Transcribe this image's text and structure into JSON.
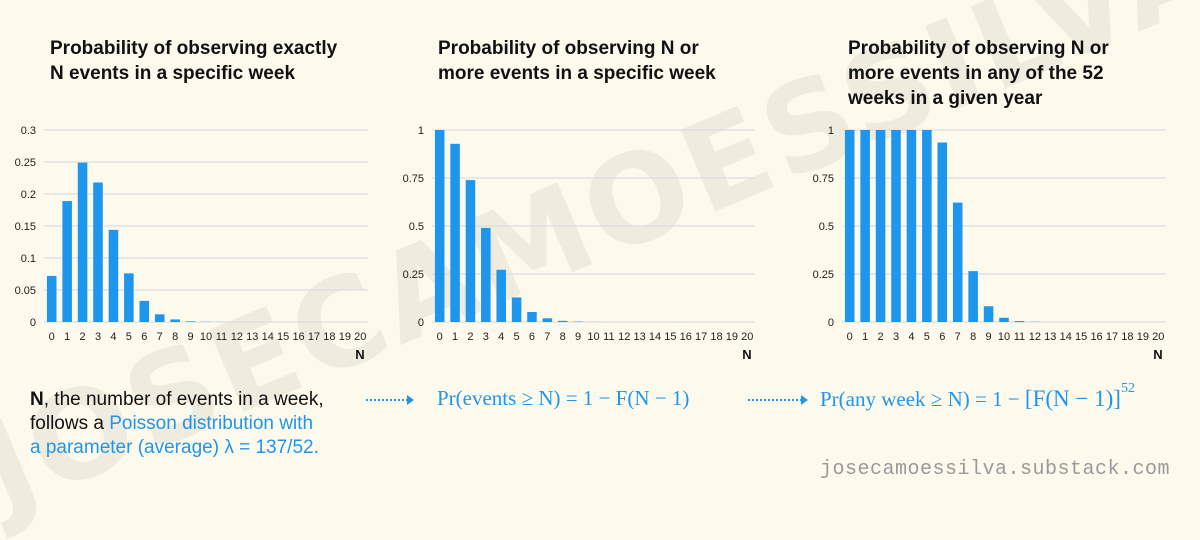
{
  "watermark": "JOSECAMOESSILVA",
  "credit": "josecamoessilva.substack.com",
  "description": {
    "n_bold": "N",
    "line1_rest": ", the number of events in a week,",
    "line2_plain": "follows a ",
    "line2_blue": "Poisson distribution with",
    "line3_blue": "a parameter (average) λ = 137/52."
  },
  "formulas": {
    "f1": "Pr(events ≥ N) = 1 − F(N − 1)",
    "f2_main": "Pr(any week ≥ N) = 1 − ",
    "f2_bracket": "[F(N − 1)]",
    "f2_exp": "52"
  },
  "colors": {
    "bar": "#1f96ee",
    "grid": "#d8d8d8",
    "accent": "#1f96ee"
  },
  "chart_data": [
    {
      "type": "bar",
      "title": "Probability of observing exactly\nN events in a specific week",
      "xlabel": "N",
      "ylabel": "",
      "categories": [
        "0",
        "1",
        "2",
        "3",
        "4",
        "5",
        "6",
        "7",
        "8",
        "9",
        "10",
        "11",
        "12",
        "13",
        "14",
        "15",
        "16",
        "17",
        "18",
        "19",
        "20"
      ],
      "values": [
        0.072,
        0.189,
        0.249,
        0.218,
        0.144,
        0.076,
        0.033,
        0.012,
        0.004,
        0.001,
        0.0003,
        0.0001,
        0,
        0,
        0,
        0,
        0,
        0,
        0,
        0,
        0
      ],
      "ylim": [
        0,
        0.3
      ],
      "yticks": [
        "0",
        "0.05",
        "0.1",
        "0.15",
        "0.2",
        "0.25",
        "0.3"
      ],
      "ytick_values": [
        0,
        0.05,
        0.1,
        0.15,
        0.2,
        0.25,
        0.3
      ]
    },
    {
      "type": "bar",
      "title": "Probability of observing N or\nmore events in a specific week",
      "xlabel": "N",
      "ylabel": "",
      "categories": [
        "0",
        "1",
        "2",
        "3",
        "4",
        "5",
        "6",
        "7",
        "8",
        "9",
        "10",
        "11",
        "12",
        "13",
        "14",
        "15",
        "16",
        "17",
        "18",
        "19",
        "20"
      ],
      "values": [
        1.0,
        0.928,
        0.739,
        0.49,
        0.272,
        0.128,
        0.052,
        0.019,
        0.006,
        0.002,
        0.0005,
        0.0001,
        0,
        0,
        0,
        0,
        0,
        0,
        0,
        0,
        0
      ],
      "ylim": [
        0,
        1
      ],
      "yticks": [
        "0",
        "0.25",
        "0.5",
        "0.75",
        "1"
      ],
      "ytick_values": [
        0,
        0.25,
        0.5,
        0.75,
        1
      ]
    },
    {
      "type": "bar",
      "title": "Probability of observing N or\nmore events in any of the 52\nweeks in a given year",
      "xlabel": "N",
      "ylabel": "",
      "categories": [
        "0",
        "1",
        "2",
        "3",
        "4",
        "5",
        "6",
        "7",
        "8",
        "9",
        "10",
        "11",
        "12",
        "13",
        "14",
        "15",
        "16",
        "17",
        "18",
        "19",
        "20"
      ],
      "values": [
        1.0,
        1.0,
        1.0,
        1.0,
        1.0,
        1.0,
        0.935,
        0.622,
        0.265,
        0.082,
        0.022,
        0.005,
        0.001,
        0,
        0,
        0,
        0,
        0,
        0,
        0,
        0
      ],
      "ylim": [
        0,
        1
      ],
      "yticks": [
        "0",
        "0.25",
        "0.5",
        "0.75",
        "1"
      ],
      "ytick_values": [
        0,
        0.25,
        0.5,
        0.75,
        1
      ]
    }
  ]
}
